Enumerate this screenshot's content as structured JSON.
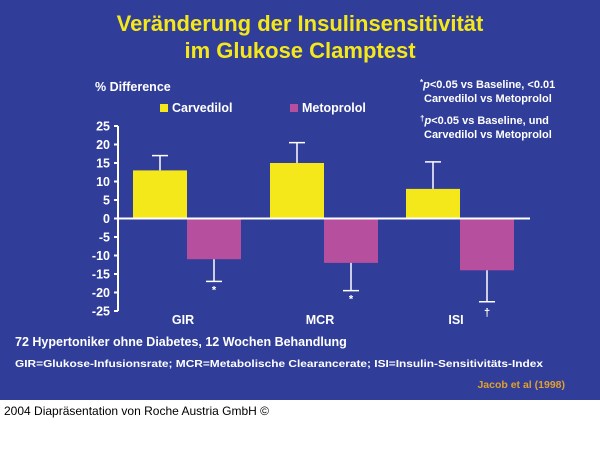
{
  "chart_data": {
    "type": "bar",
    "title": "Veränderung der Insulinsensitivität",
    "subtitle": "im Glukose Clamptest",
    "ylabel": "% Difference",
    "ylim": [
      -25,
      25
    ],
    "yticks": [
      "25",
      "20",
      "15",
      "10",
      "5",
      "0",
      "-5",
      "-10",
      "-15",
      "-20",
      "-25"
    ],
    "categories": [
      "GIR",
      "MCR",
      "ISI"
    ],
    "series": [
      {
        "name": "Carvedilol",
        "color": "#f5e81a",
        "values": [
          13,
          15,
          8
        ],
        "error_upper": [
          17,
          20.5,
          15.3
        ]
      },
      {
        "name": "Metoprolol",
        "color": "#b64f9e",
        "values": [
          -11,
          -12,
          -14
        ],
        "error_lower": [
          -17,
          -19.5,
          -22.5
        ],
        "markers": [
          "*",
          "*",
          "†"
        ]
      }
    ],
    "legend": "top-left",
    "grid": false,
    "footnotes": [
      {
        "mark": "*",
        "line1": "p<0.05 vs Baseline, <0.01",
        "line2": "Carvedilol vs Metoprolol"
      },
      {
        "mark": "†",
        "line1": "p<0.05 vs Baseline, und",
        "line2": "Carvedilol vs Metoprolol"
      }
    ],
    "note": "72 Hypertoniker ohne Diabetes, 12 Wochen Behandlung",
    "abbreviations": "GIR=Glukose-Infusionsrate; MCR=Metabolische Clearancerate; ISI=Insulin-Sensitivitäts-Index",
    "source": "Jacob et al (1998)"
  },
  "colors": {
    "background": "#313e99",
    "title": "#f5e81a",
    "source": "#e0a030"
  },
  "footer": "2004 Diapräsentation von Roche Austria GmbH ©"
}
